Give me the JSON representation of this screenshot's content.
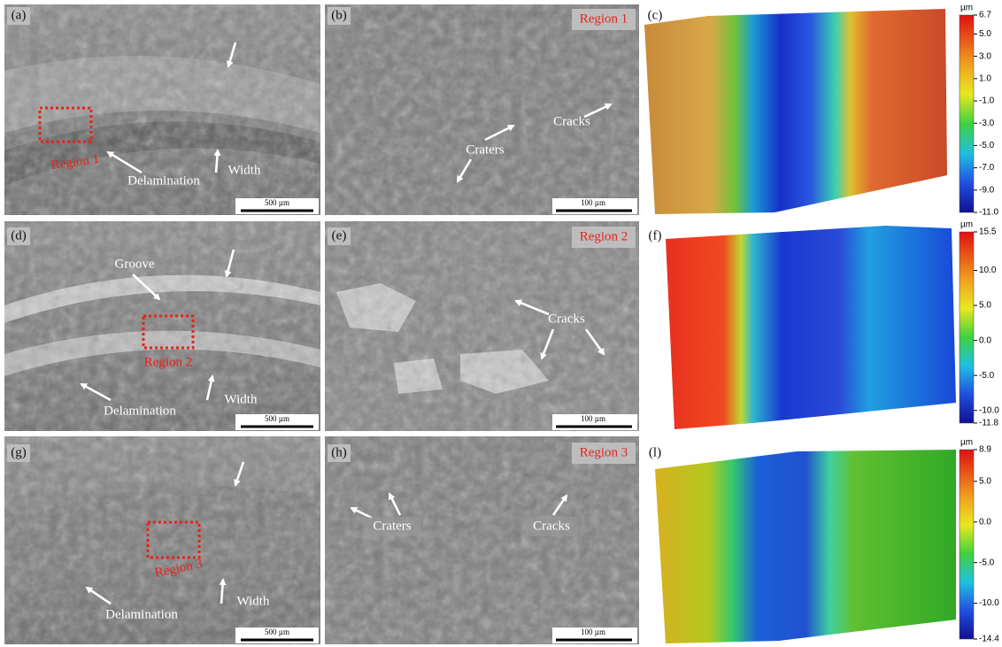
{
  "panels": [
    {
      "label": "(a)",
      "annotations": [
        "Region 1",
        "Delamination",
        "Width"
      ],
      "scale_bar": "500 µm"
    },
    {
      "label": "(b)",
      "annotations": [
        "Region 1",
        "Craters",
        "Cracks"
      ],
      "scale_bar": "100 µm"
    },
    {
      "label": "(c)",
      "colorbar": {
        "unit": "µm",
        "ticks": [
          "6.7",
          "5.0",
          "3.0",
          "1.0",
          "-1.0",
          "-3.0",
          "-5.0",
          "-7.0",
          "-9.0",
          "-11.0"
        ]
      }
    },
    {
      "label": "(d)",
      "annotations": [
        "Groove",
        "Region 2",
        "Delamination",
        "Width"
      ],
      "scale_bar": "500 µm"
    },
    {
      "label": "(e)",
      "annotations": [
        "Region 2",
        "Cracks"
      ],
      "scale_bar": "100 µm"
    },
    {
      "label": "(f)",
      "colorbar": {
        "unit": "µm",
        "ticks": [
          "15.5",
          "10.0",
          "5.0",
          "0.0",
          "-5.0",
          "-10.0",
          "-11.8"
        ]
      }
    },
    {
      "label": "(g)",
      "annotations": [
        "Region 3",
        "Delamination",
        "Width"
      ],
      "scale_bar": "500 µm"
    },
    {
      "label": "(h)",
      "annotations": [
        "Region 3",
        "Craters",
        "Cracks"
      ],
      "scale_bar": "100 µm"
    },
    {
      "label": "(l)",
      "colorbar": {
        "unit": "µm",
        "ticks": [
          "8.9",
          "5.0",
          "0.0",
          "-5.0",
          "-10.0",
          "-14.4"
        ]
      }
    }
  ]
}
